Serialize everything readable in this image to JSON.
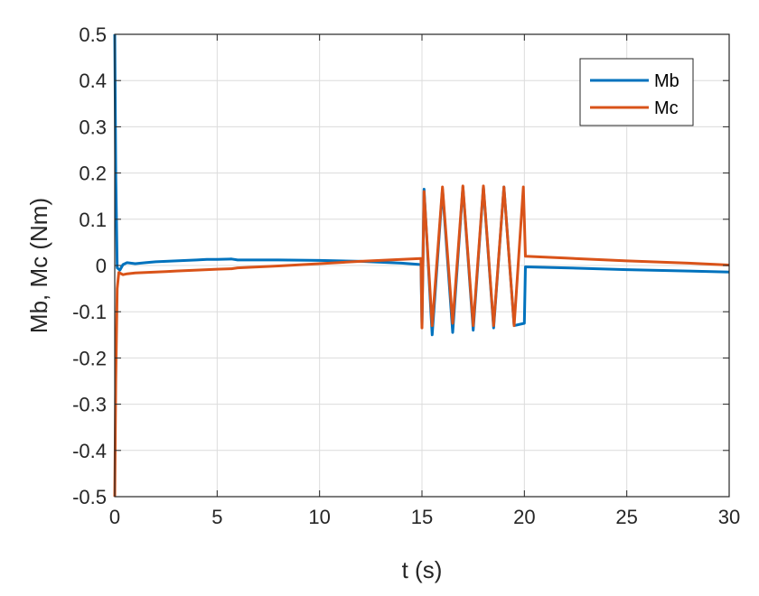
{
  "chart_data": {
    "type": "line",
    "xlabel": "t (s)",
    "ylabel": "Mb, Mc (Nm)",
    "xlim": [
      0,
      30
    ],
    "ylim": [
      -0.5,
      0.5
    ],
    "xticks": [
      0,
      5,
      10,
      15,
      20,
      25,
      30
    ],
    "yticks": [
      0.5,
      0.4,
      0.3,
      0.2,
      0.1,
      0,
      -0.1,
      -0.2,
      -0.3,
      -0.4,
      -0.5
    ],
    "xtick_labels": [
      "0",
      "5",
      "10",
      "15",
      "20",
      "25",
      "30"
    ],
    "ytick_labels": [
      "0.5",
      "0.4",
      "0.3",
      "0.2",
      "0.1",
      "0",
      "-0.1",
      "-0.2",
      "-0.3",
      "-0.4",
      "-0.5"
    ],
    "grid": true,
    "legend_position": "top-right",
    "series": [
      {
        "name": "Mb",
        "color": "#0072BD",
        "points": [
          [
            0.0,
            0.5
          ],
          [
            0.05,
            0.2
          ],
          [
            0.12,
            -0.005
          ],
          [
            0.25,
            -0.01
          ],
          [
            0.4,
            0.002
          ],
          [
            0.6,
            0.006
          ],
          [
            1.0,
            0.004
          ],
          [
            1.5,
            0.006
          ],
          [
            2.0,
            0.008
          ],
          [
            2.5,
            0.009
          ],
          [
            3.0,
            0.01
          ],
          [
            3.5,
            0.011
          ],
          [
            4.0,
            0.012
          ],
          [
            4.5,
            0.013
          ],
          [
            5.0,
            0.013
          ],
          [
            5.7,
            0.014
          ],
          [
            6.0,
            0.012
          ],
          [
            8.0,
            0.012
          ],
          [
            10.0,
            0.011
          ],
          [
            12.0,
            0.009
          ],
          [
            14.0,
            0.005
          ],
          [
            14.95,
            0.002
          ],
          [
            15.0,
            -0.13
          ],
          [
            15.1,
            0.165
          ],
          [
            15.5,
            -0.15
          ],
          [
            16.0,
            0.165
          ],
          [
            16.5,
            -0.145
          ],
          [
            17.0,
            0.17
          ],
          [
            17.5,
            -0.14
          ],
          [
            18.0,
            0.17
          ],
          [
            18.5,
            -0.135
          ],
          [
            19.0,
            0.17
          ],
          [
            19.5,
            -0.13
          ],
          [
            20.0,
            -0.125
          ],
          [
            20.05,
            -0.003
          ],
          [
            22.0,
            -0.005
          ],
          [
            25.0,
            -0.009
          ],
          [
            28.0,
            -0.012
          ],
          [
            30.0,
            -0.014
          ]
        ]
      },
      {
        "name": "Mc",
        "color": "#D95319",
        "points": [
          [
            0.0,
            -0.5
          ],
          [
            0.05,
            -0.25
          ],
          [
            0.12,
            -0.05
          ],
          [
            0.2,
            -0.015
          ],
          [
            0.4,
            -0.02
          ],
          [
            0.6,
            -0.018
          ],
          [
            1.0,
            -0.016
          ],
          [
            1.5,
            -0.015
          ],
          [
            2.0,
            -0.014
          ],
          [
            2.5,
            -0.013
          ],
          [
            3.0,
            -0.012
          ],
          [
            3.5,
            -0.011
          ],
          [
            4.0,
            -0.01
          ],
          [
            4.5,
            -0.009
          ],
          [
            5.0,
            -0.008
          ],
          [
            5.7,
            -0.007
          ],
          [
            6.0,
            -0.005
          ],
          [
            8.0,
            -0.001
          ],
          [
            10.0,
            0.004
          ],
          [
            12.0,
            0.009
          ],
          [
            14.0,
            0.013
          ],
          [
            14.95,
            0.015
          ],
          [
            15.0,
            -0.135
          ],
          [
            15.1,
            0.16
          ],
          [
            15.5,
            -0.13
          ],
          [
            16.0,
            0.17
          ],
          [
            16.5,
            -0.125
          ],
          [
            17.0,
            0.172
          ],
          [
            17.5,
            -0.13
          ],
          [
            18.0,
            0.172
          ],
          [
            18.5,
            -0.13
          ],
          [
            19.0,
            0.17
          ],
          [
            19.5,
            -0.13
          ],
          [
            19.95,
            0.17
          ],
          [
            20.05,
            0.02
          ],
          [
            22.0,
            0.016
          ],
          [
            25.0,
            0.01
          ],
          [
            28.0,
            0.005
          ],
          [
            30.0,
            0.001
          ]
        ]
      }
    ]
  }
}
